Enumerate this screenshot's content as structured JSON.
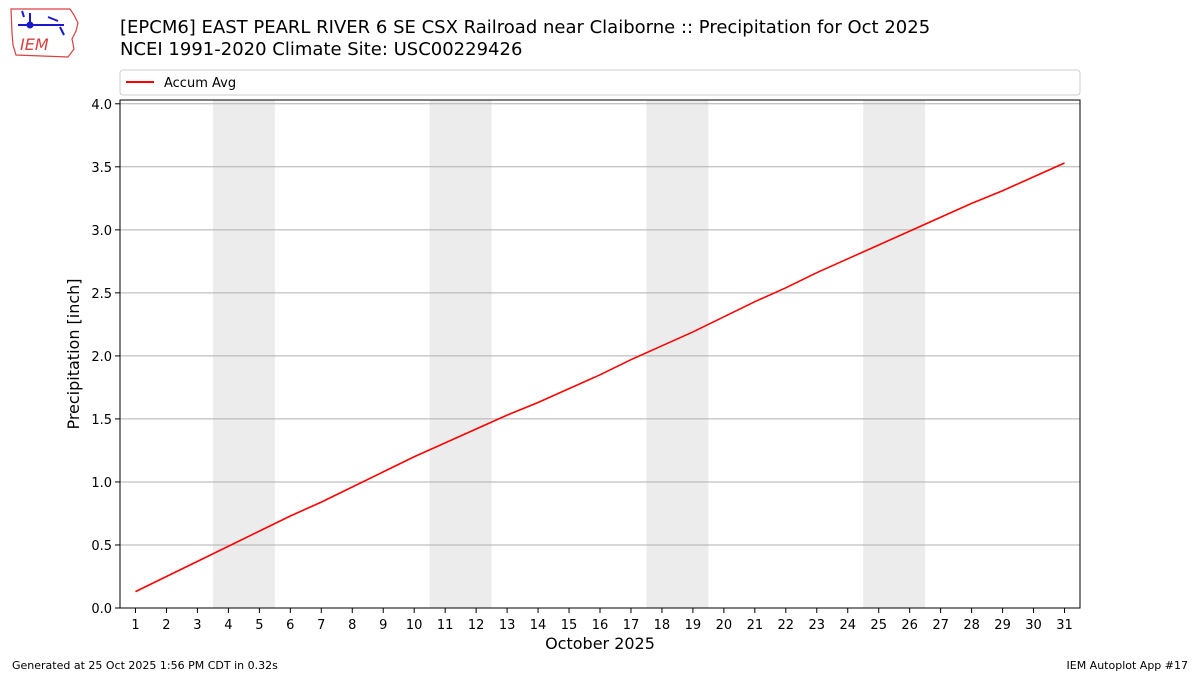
{
  "header": {
    "title_line1": "[EPCM6] EAST PEARL RIVER 6 SE CSX Railroad near Claiborne :: Precipitation for Oct 2025",
    "title_line2": "NCEI 1991-2020 Climate Site: USC00229426",
    "logo_text": "IEM"
  },
  "footer": {
    "left": "Generated at 25 Oct 2025 1:56 PM CDT in 0.32s",
    "right": "IEM Autoplot App #17"
  },
  "colors": {
    "series": "#ff0000",
    "weekend_band": "#ececec",
    "grid": "#b0b0b0",
    "logo": "#1a1acc",
    "logo_text": "#d94040"
  },
  "chart_data": {
    "type": "line",
    "title": "[EPCM6] EAST PEARL RIVER 6 SE CSX Railroad near Claiborne :: Precipitation for Oct 2025",
    "subtitle": "NCEI 1991-2020 Climate Site: USC00229426",
    "xlabel": "October 2025",
    "ylabel": "Precipitation [inch]",
    "x": [
      1,
      2,
      3,
      4,
      5,
      6,
      7,
      8,
      9,
      10,
      11,
      12,
      13,
      14,
      15,
      16,
      17,
      18,
      19,
      20,
      21,
      22,
      23,
      24,
      25,
      26,
      27,
      28,
      29,
      30,
      31
    ],
    "xlim": [
      0.5,
      31.5
    ],
    "ylim": [
      0.0,
      4.03
    ],
    "yticks": [
      "0.0",
      "0.5",
      "1.0",
      "1.5",
      "2.0",
      "2.5",
      "3.0",
      "3.5",
      "4.0"
    ],
    "series": [
      {
        "name": "Accum Avg",
        "values": [
          0.13,
          0.25,
          0.37,
          0.49,
          0.61,
          0.73,
          0.84,
          0.96,
          1.08,
          1.2,
          1.31,
          1.42,
          1.53,
          1.63,
          1.74,
          1.85,
          1.97,
          2.08,
          2.19,
          2.31,
          2.43,
          2.54,
          2.66,
          2.77,
          2.88,
          2.99,
          3.1,
          3.21,
          3.31,
          3.42,
          3.53
        ]
      }
    ],
    "weekend_bands": [
      [
        3.5,
        5.5
      ],
      [
        10.5,
        12.5
      ],
      [
        17.5,
        19.5
      ],
      [
        24.5,
        26.5
      ]
    ],
    "grid": "y",
    "legend_position": "top"
  }
}
